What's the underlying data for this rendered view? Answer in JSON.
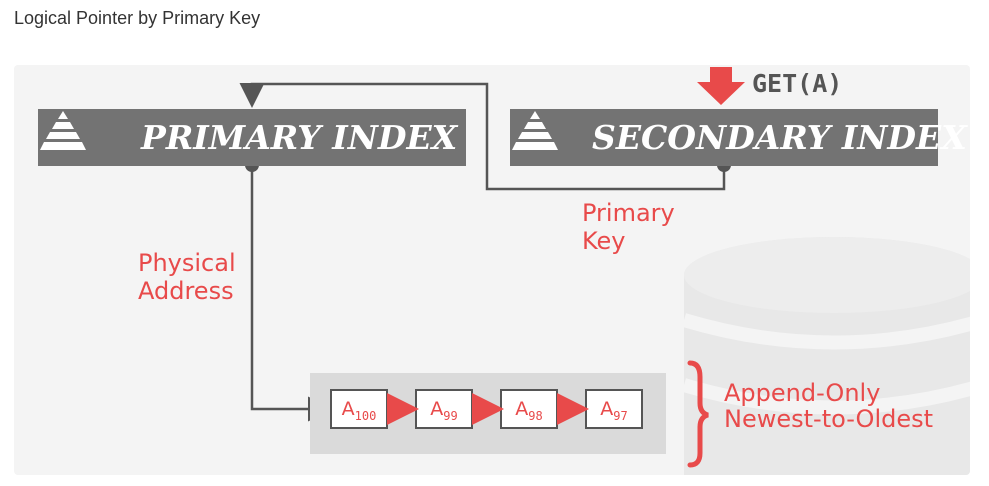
{
  "page_title": "Logical Pointer by Primary Key",
  "primary_index": {
    "label": "PRIMARY INDEX",
    "icon": "pyramid-icon"
  },
  "secondary_index": {
    "label": "SECONDARY INDEX",
    "icon": "pyramid-icon"
  },
  "query": {
    "label": "GET(A)",
    "arrow_icon": "down-arrow-icon"
  },
  "primary_key_label": {
    "line1": "Primary",
    "line2": "Key"
  },
  "physical_address_label": {
    "line1": "Physical",
    "line2": "Address"
  },
  "versions": [
    {
      "base": "A",
      "sub": "100"
    },
    {
      "base": "A",
      "sub": "99"
    },
    {
      "base": "A",
      "sub": "98"
    },
    {
      "base": "A",
      "sub": "97"
    }
  ],
  "chain_label": {
    "line1": "Append-Only",
    "line2": "Newest-to-Oldest"
  },
  "colors": {
    "accent_red": "#e84a4a",
    "box_gray": "#737373",
    "line_gray": "#555555"
  }
}
